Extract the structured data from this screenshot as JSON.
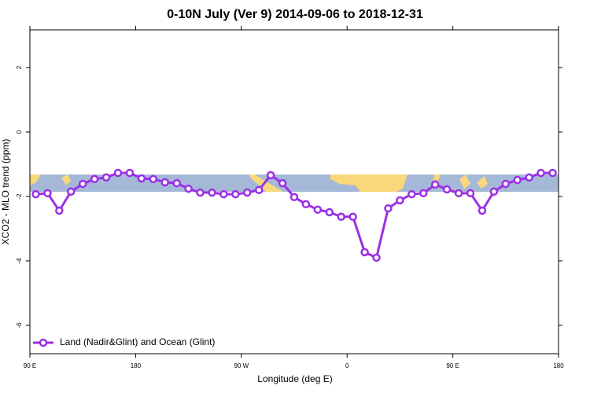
{
  "chart_data": {
    "type": "line",
    "title": "0-10N July (Ver 9)   2014-09-06 to 2018-12-31",
    "x_label": "Longitude (deg E)",
    "y_label": "XCO2 - MLO trend (ppm)",
    "x": [
      95,
      105,
      115,
      125,
      135,
      145,
      155,
      165,
      175,
      185,
      195,
      205,
      215,
      225,
      235,
      245,
      255,
      265,
      275,
      285,
      295,
      305,
      315,
      325,
      335,
      345,
      355,
      365,
      375,
      385,
      395,
      405,
      415,
      425,
      435,
      445,
      455,
      465,
      475,
      485,
      495,
      505,
      515,
      525,
      535
    ],
    "series": [
      {
        "name": "Land (Nadir&Glint) and Ocean (Glint)",
        "color": "#9b30e6",
        "values": [
          -1.93,
          -1.9,
          -2.44,
          -1.85,
          -1.61,
          -1.46,
          -1.41,
          -1.27,
          -1.27,
          -1.44,
          -1.46,
          -1.56,
          -1.59,
          -1.76,
          -1.88,
          -1.88,
          -1.93,
          -1.93,
          -1.88,
          -1.8,
          -1.34,
          -1.59,
          -2.02,
          -2.24,
          -2.41,
          -2.49,
          -2.63,
          -2.63,
          -3.73,
          -3.9,
          -2.37,
          -2.12,
          -1.93,
          -1.9,
          -1.63,
          -1.78,
          -1.9,
          -1.9,
          -2.44,
          -1.85,
          -1.61,
          -1.49,
          -1.41,
          -1.27,
          -1.27
        ]
      }
    ],
    "xlim": [
      90,
      540
    ],
    "xticks": [
      {
        "value": 90,
        "label": "90 E"
      },
      180,
      {
        "value": 270,
        "label": "90 W"
      },
      {
        "value": 360,
        "label": "0"
      },
      {
        "value": 450,
        "label": "90 E"
      },
      {
        "value": 540,
        "label": "180"
      }
    ],
    "ylim": [
      -6.88,
      3.17
    ],
    "yticks": [
      -6,
      -4,
      -2,
      0,
      2
    ],
    "legend": "bottom-left"
  }
}
